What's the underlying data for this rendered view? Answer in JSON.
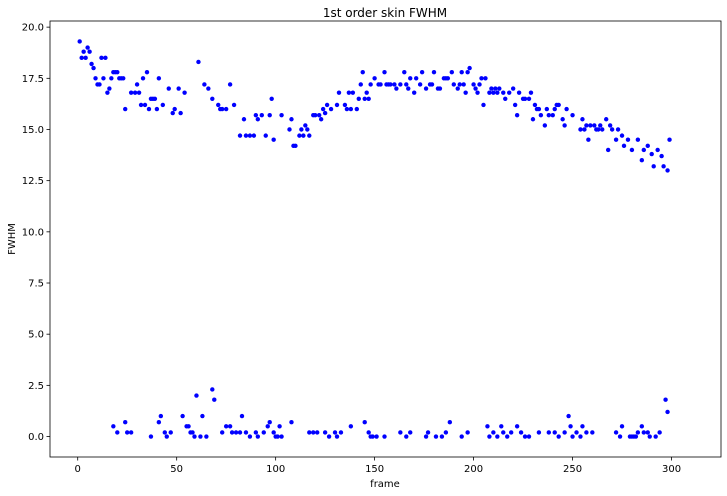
{
  "chart_data": {
    "type": "scatter",
    "title": "1st order skin FWHM",
    "xlabel": "frame",
    "ylabel": "FWHM",
    "xlim": [
      -14,
      325
    ],
    "ylim": [
      -1,
      20.3
    ],
    "xticks": [
      0,
      50,
      100,
      150,
      200,
      250,
      300
    ],
    "yticks": [
      0.0,
      2.5,
      5.0,
      7.5,
      10.0,
      12.5,
      15.0,
      17.5,
      20.0
    ],
    "ytick_labels": [
      "0.0",
      "2.5",
      "5.0",
      "7.5",
      "10.0",
      "12.5",
      "15.0",
      "17.5",
      "20.0"
    ],
    "grid": false,
    "legend": "none",
    "series": [
      {
        "color": "#0000ff",
        "points": [
          [
            1,
            19.3
          ],
          [
            2,
            18.5
          ],
          [
            3,
            18.8
          ],
          [
            4,
            18.5
          ],
          [
            5,
            19.0
          ],
          [
            6,
            18.8
          ],
          [
            7,
            18.2
          ],
          [
            8,
            18.0
          ],
          [
            9,
            17.5
          ],
          [
            10,
            17.2
          ],
          [
            11,
            17.2
          ],
          [
            12,
            18.5
          ],
          [
            13,
            17.5
          ],
          [
            14,
            18.5
          ],
          [
            15,
            16.8
          ],
          [
            16,
            17.0
          ],
          [
            17,
            17.5
          ],
          [
            18,
            17.8
          ],
          [
            19,
            17.8
          ],
          [
            20,
            17.8
          ],
          [
            21,
            17.5
          ],
          [
            22,
            17.5
          ],
          [
            23,
            17.5
          ],
          [
            24,
            16.0
          ],
          [
            27,
            16.8
          ],
          [
            29,
            16.8
          ],
          [
            30,
            17.2
          ],
          [
            31,
            16.8
          ],
          [
            32,
            16.2
          ],
          [
            33,
            17.5
          ],
          [
            34,
            16.2
          ],
          [
            35,
            17.8
          ],
          [
            36,
            16.0
          ],
          [
            37,
            16.5
          ],
          [
            38,
            16.5
          ],
          [
            39,
            16.5
          ],
          [
            40,
            16.0
          ],
          [
            41,
            17.5
          ],
          [
            43,
            16.2
          ],
          [
            46,
            17.0
          ],
          [
            48,
            15.8
          ],
          [
            49,
            16.0
          ],
          [
            51,
            17.0
          ],
          [
            52,
            15.8
          ],
          [
            54,
            16.8
          ],
          [
            61,
            18.3
          ],
          [
            64,
            17.2
          ],
          [
            66,
            17.0
          ],
          [
            68,
            16.5
          ],
          [
            71,
            16.2
          ],
          [
            72,
            16.0
          ],
          [
            73,
            16.0
          ],
          [
            75,
            16.0
          ],
          [
            77,
            17.2
          ],
          [
            79,
            16.2
          ],
          [
            82,
            14.7
          ],
          [
            84,
            15.5
          ],
          [
            85,
            14.7
          ],
          [
            87,
            14.7
          ],
          [
            89,
            14.7
          ],
          [
            90,
            15.7
          ],
          [
            91,
            15.5
          ],
          [
            93,
            15.7
          ],
          [
            95,
            14.7
          ],
          [
            97,
            15.7
          ],
          [
            98,
            16.5
          ],
          [
            99,
            14.5
          ],
          [
            103,
            15.7
          ],
          [
            107,
            15.0
          ],
          [
            108,
            15.5
          ],
          [
            109,
            14.2
          ],
          [
            110,
            14.2
          ],
          [
            112,
            14.7
          ],
          [
            113,
            15.0
          ],
          [
            114,
            14.7
          ],
          [
            115,
            15.2
          ],
          [
            116,
            15.0
          ],
          [
            117,
            14.7
          ],
          [
            119,
            15.7
          ],
          [
            120,
            15.7
          ],
          [
            122,
            15.7
          ],
          [
            123,
            15.5
          ],
          [
            124,
            16.0
          ],
          [
            125,
            15.8
          ],
          [
            126,
            16.2
          ],
          [
            128,
            16.0
          ],
          [
            131,
            16.2
          ],
          [
            132,
            16.8
          ],
          [
            135,
            16.2
          ],
          [
            136,
            16.0
          ],
          [
            137,
            16.8
          ],
          [
            138,
            16.0
          ],
          [
            139,
            16.8
          ],
          [
            141,
            16.0
          ],
          [
            142,
            16.5
          ],
          [
            143,
            17.2
          ],
          [
            144,
            17.8
          ],
          [
            145,
            16.5
          ],
          [
            146,
            16.8
          ],
          [
            147,
            16.5
          ],
          [
            148,
            17.2
          ],
          [
            150,
            17.5
          ],
          [
            152,
            17.2
          ],
          [
            153,
            17.2
          ],
          [
            155,
            17.8
          ],
          [
            156,
            17.2
          ],
          [
            157,
            17.2
          ],
          [
            158,
            17.2
          ],
          [
            160,
            17.2
          ],
          [
            161,
            17.0
          ],
          [
            163,
            17.2
          ],
          [
            165,
            17.8
          ],
          [
            166,
            17.2
          ],
          [
            167,
            17.0
          ],
          [
            168,
            17.5
          ],
          [
            170,
            16.8
          ],
          [
            171,
            17.5
          ],
          [
            173,
            17.2
          ],
          [
            174,
            17.8
          ],
          [
            176,
            17.0
          ],
          [
            178,
            17.2
          ],
          [
            179,
            17.2
          ],
          [
            180,
            17.8
          ],
          [
            182,
            17.0
          ],
          [
            183,
            17.0
          ],
          [
            185,
            17.5
          ],
          [
            186,
            17.5
          ],
          [
            187,
            17.5
          ],
          [
            189,
            17.8
          ],
          [
            190,
            17.2
          ],
          [
            192,
            17.0
          ],
          [
            193,
            17.2
          ],
          [
            194,
            17.8
          ],
          [
            195,
            17.2
          ],
          [
            196,
            16.8
          ],
          [
            197,
            17.8
          ],
          [
            198,
            18.0
          ],
          [
            200,
            17.2
          ],
          [
            201,
            17.0
          ],
          [
            202,
            16.8
          ],
          [
            203,
            17.2
          ],
          [
            204,
            17.5
          ],
          [
            205,
            16.2
          ],
          [
            206,
            17.5
          ],
          [
            208,
            16.8
          ],
          [
            209,
            17.0
          ],
          [
            210,
            16.8
          ],
          [
            211,
            17.0
          ],
          [
            212,
            16.8
          ],
          [
            213,
            17.0
          ],
          [
            215,
            16.8
          ],
          [
            216,
            16.5
          ],
          [
            218,
            16.8
          ],
          [
            220,
            17.0
          ],
          [
            221,
            16.2
          ],
          [
            222,
            15.7
          ],
          [
            223,
            16.8
          ],
          [
            225,
            16.5
          ],
          [
            226,
            16.5
          ],
          [
            228,
            16.5
          ],
          [
            229,
            16.8
          ],
          [
            230,
            15.5
          ],
          [
            231,
            16.2
          ],
          [
            232,
            16.0
          ],
          [
            233,
            16.0
          ],
          [
            234,
            15.7
          ],
          [
            236,
            15.2
          ],
          [
            237,
            16.0
          ],
          [
            238,
            15.7
          ],
          [
            240,
            15.7
          ],
          [
            241,
            16.0
          ],
          [
            242,
            16.2
          ],
          [
            243,
            16.2
          ],
          [
            245,
            15.5
          ],
          [
            246,
            15.2
          ],
          [
            247,
            16.0
          ],
          [
            250,
            15.7
          ],
          [
            254,
            15.0
          ],
          [
            255,
            15.5
          ],
          [
            256,
            15.0
          ],
          [
            257,
            15.2
          ],
          [
            258,
            14.5
          ],
          [
            259,
            15.2
          ],
          [
            261,
            15.2
          ],
          [
            262,
            15.0
          ],
          [
            263,
            15.0
          ],
          [
            264,
            15.2
          ],
          [
            265,
            15.0
          ],
          [
            267,
            15.5
          ],
          [
            268,
            14.0
          ],
          [
            269,
            15.2
          ],
          [
            270,
            15.0
          ],
          [
            272,
            14.5
          ],
          [
            273,
            15.0
          ],
          [
            275,
            14.7
          ],
          [
            276,
            14.2
          ],
          [
            278,
            14.5
          ],
          [
            280,
            14.0
          ],
          [
            283,
            14.5
          ],
          [
            285,
            13.5
          ],
          [
            286,
            14.0
          ],
          [
            288,
            14.2
          ],
          [
            290,
            13.8
          ],
          [
            291,
            13.2
          ],
          [
            293,
            14.0
          ],
          [
            295,
            13.7
          ],
          [
            296,
            13.2
          ],
          [
            298,
            13.0
          ],
          [
            299,
            14.5
          ],
          [
            18,
            0.5
          ],
          [
            20,
            0.2
          ],
          [
            24,
            0.7
          ],
          [
            25,
            0.2
          ],
          [
            27,
            0.2
          ],
          [
            37,
            0.0
          ],
          [
            41,
            0.7
          ],
          [
            42,
            1.0
          ],
          [
            44,
            0.2
          ],
          [
            45,
            0.0
          ],
          [
            47,
            0.2
          ],
          [
            53,
            1.0
          ],
          [
            55,
            0.5
          ],
          [
            56,
            0.5
          ],
          [
            57,
            0.2
          ],
          [
            58,
            0.2
          ],
          [
            59,
            0.0
          ],
          [
            60,
            2.0
          ],
          [
            62,
            0.0
          ],
          [
            63,
            1.0
          ],
          [
            65,
            0.0
          ],
          [
            68,
            2.3
          ],
          [
            69,
            1.8
          ],
          [
            73,
            0.2
          ],
          [
            75,
            0.5
          ],
          [
            77,
            0.5
          ],
          [
            78,
            0.2
          ],
          [
            80,
            0.2
          ],
          [
            82,
            0.2
          ],
          [
            83,
            1.0
          ],
          [
            85,
            0.2
          ],
          [
            87,
            0.0
          ],
          [
            90,
            0.2
          ],
          [
            91,
            0.0
          ],
          [
            94,
            0.2
          ],
          [
            96,
            0.5
          ],
          [
            97,
            0.7
          ],
          [
            99,
            0.2
          ],
          [
            100,
            0.0
          ],
          [
            101,
            0.0
          ],
          [
            102,
            0.5
          ],
          [
            103,
            0.0
          ],
          [
            108,
            0.7
          ],
          [
            117,
            0.2
          ],
          [
            119,
            0.2
          ],
          [
            121,
            0.2
          ],
          [
            125,
            0.2
          ],
          [
            127,
            0.0
          ],
          [
            130,
            0.2
          ],
          [
            131,
            0.0
          ],
          [
            133,
            0.2
          ],
          [
            138,
            0.5
          ],
          [
            145,
            0.7
          ],
          [
            147,
            0.2
          ],
          [
            148,
            0.0
          ],
          [
            149,
            0.0
          ],
          [
            151,
            0.0
          ],
          [
            155,
            0.0
          ],
          [
            163,
            0.2
          ],
          [
            166,
            0.0
          ],
          [
            168,
            0.2
          ],
          [
            176,
            0.0
          ],
          [
            177,
            0.2
          ],
          [
            181,
            0.0
          ],
          [
            184,
            0.0
          ],
          [
            186,
            0.2
          ],
          [
            188,
            0.7
          ],
          [
            194,
            0.0
          ],
          [
            197,
            0.2
          ],
          [
            207,
            0.5
          ],
          [
            208,
            0.0
          ],
          [
            210,
            0.2
          ],
          [
            212,
            0.0
          ],
          [
            214,
            0.5
          ],
          [
            215,
            0.2
          ],
          [
            217,
            0.0
          ],
          [
            219,
            0.2
          ],
          [
            222,
            0.5
          ],
          [
            224,
            0.2
          ],
          [
            226,
            0.0
          ],
          [
            228,
            0.0
          ],
          [
            233,
            0.2
          ],
          [
            238,
            0.2
          ],
          [
            241,
            0.2
          ],
          [
            243,
            0.0
          ],
          [
            246,
            0.2
          ],
          [
            248,
            1.0
          ],
          [
            249,
            0.5
          ],
          [
            250,
            0.0
          ],
          [
            252,
            0.2
          ],
          [
            254,
            0.0
          ],
          [
            255,
            0.5
          ],
          [
            257,
            0.2
          ],
          [
            260,
            0.2
          ],
          [
            272,
            0.2
          ],
          [
            274,
            0.0
          ],
          [
            275,
            0.5
          ],
          [
            279,
            0.0
          ],
          [
            280,
            0.0
          ],
          [
            281,
            0.0
          ],
          [
            282,
            0.0
          ],
          [
            283,
            0.2
          ],
          [
            285,
            0.5
          ],
          [
            286,
            0.2
          ],
          [
            288,
            0.2
          ],
          [
            289,
            0.0
          ],
          [
            292,
            0.0
          ],
          [
            294,
            0.2
          ],
          [
            297,
            1.8
          ],
          [
            298,
            1.2
          ]
        ]
      }
    ]
  }
}
